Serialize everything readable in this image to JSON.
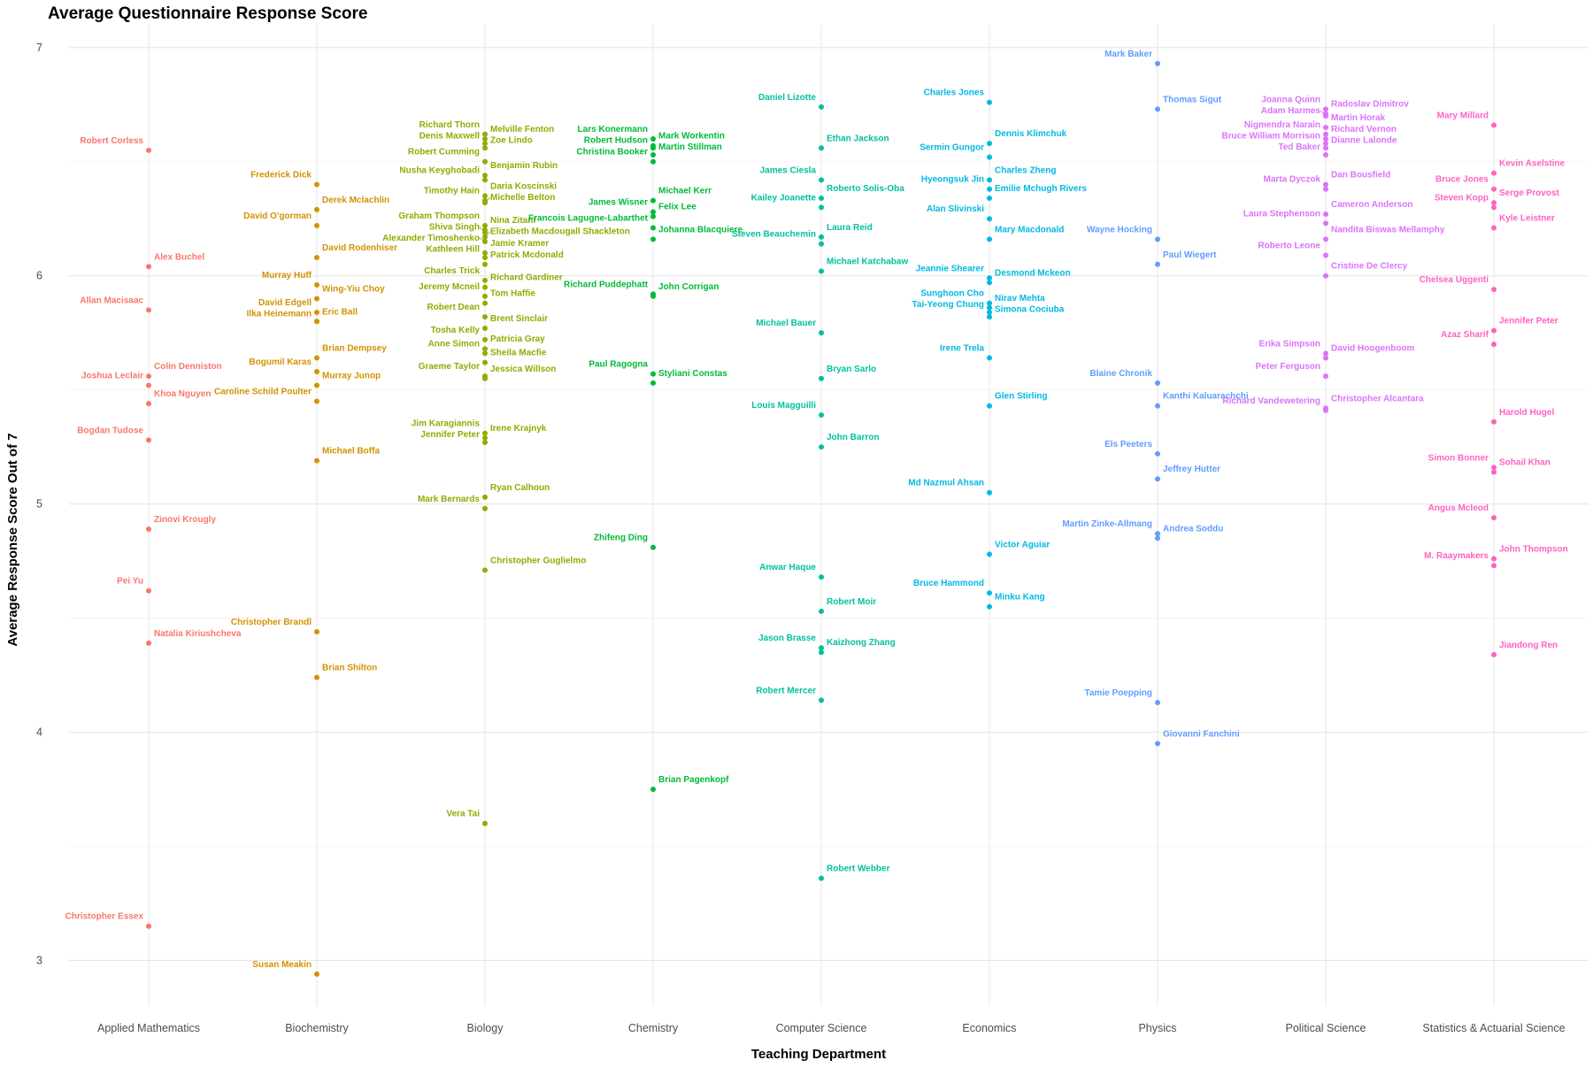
{
  "chart_data": {
    "type": "scatter",
    "title": "Average Questionnaire Response Score",
    "xlabel": "Teaching Department",
    "ylabel": "Average Response Score Out of 7",
    "ylim": [
      2.8,
      7.1
    ],
    "yticks": [
      "3",
      "4",
      "5",
      "6",
      "7"
    ],
    "grid": true,
    "legend": "none",
    "categories": [
      "Applied Mathematics",
      "Biochemistry",
      "Biology",
      "Chemistry",
      "Computer Science",
      "Economics",
      "Physics",
      "Political Science",
      "Statistics & Actuarial Science"
    ],
    "colors": [
      "#F8766D",
      "#D39200",
      "#93AA00",
      "#00BA38",
      "#00C19F",
      "#00B9E3",
      "#619CFF",
      "#DB72FB",
      "#FF61C3"
    ],
    "series": [
      {
        "category": "Applied Mathematics",
        "points": [
          {
            "name": "Robert Corless",
            "y": 6.55
          },
          {
            "name": "Alex Buchel",
            "y": 6.04
          },
          {
            "name": "Allan Macisaac",
            "y": 5.85
          },
          {
            "name": "Colin Denniston",
            "y": 5.56
          },
          {
            "name": "Joshua Leclair",
            "y": 5.52
          },
          {
            "name": "Khoa Nguyen",
            "y": 5.44
          },
          {
            "name": "Bogdan Tudose",
            "y": 5.28
          },
          {
            "name": "Zinovi Krougly",
            "y": 4.89
          },
          {
            "name": "Pei Yu",
            "y": 4.62
          },
          {
            "name": "Natalia Kiriushcheva",
            "y": 4.39
          },
          {
            "name": "Christopher Essex",
            "y": 3.15
          }
        ]
      },
      {
        "category": "Biochemistry",
        "points": [
          {
            "name": "Frederick Dick",
            "y": 6.4
          },
          {
            "name": "Derek Mclachlin",
            "y": 6.29
          },
          {
            "name": "David O'gorman",
            "y": 6.22
          },
          {
            "name": "David Rodenhiser",
            "y": 6.08
          },
          {
            "name": "Murray Huff",
            "y": 5.96
          },
          {
            "name": "Wing-Yiu Choy",
            "y": 5.9
          },
          {
            "name": "David Edgell",
            "y": 5.84
          },
          {
            "name": "Eric Ball",
            "y": 5.8
          },
          {
            "name": "Ilka Heinemann",
            "y": 5.8
          },
          {
            "name": "Brian Dempsey",
            "y": 5.64
          },
          {
            "name": "Bogumil Karas",
            "y": 5.58
          },
          {
            "name": "Murray Junop",
            "y": 5.52
          },
          {
            "name": "Caroline Schild Poulter",
            "y": 5.45
          },
          {
            "name": "Michael Boffa",
            "y": 5.19
          },
          {
            "name": "Christopher Brandl",
            "y": 4.44
          },
          {
            "name": "Brian Shilton",
            "y": 4.24
          },
          {
            "name": "Susan Meakin",
            "y": 2.94
          }
        ]
      },
      {
        "category": "Biology",
        "points": [
          {
            "name": "Richard Thorn",
            "y": 6.62
          },
          {
            "name": "Melville Fenton",
            "y": 6.6
          },
          {
            "name": "Denis Maxwell",
            "y": 6.58
          },
          {
            "name": "Zoe Lindo",
            "y": 6.56
          },
          {
            "name": "Robert Cumming",
            "y": 6.5
          },
          {
            "name": "Benjamin Rubin",
            "y": 6.44
          },
          {
            "name": "Nusha Keyghobadi",
            "y": 6.42
          },
          {
            "name": "Daria Koscinski",
            "y": 6.35
          },
          {
            "name": "Timothy Hain",
            "y": 6.33
          },
          {
            "name": "Michelle Belton",
            "y": 6.32
          },
          {
            "name": "Graham Thompson",
            "y": 6.22
          },
          {
            "name": "Nina Zitani",
            "y": 6.2
          },
          {
            "name": "Shiva Singh",
            "y": 6.19
          },
          {
            "name": "Elizabeth Macdougall Shackleton",
            "y": 6.17
          },
          {
            "name": "Alexander Timoshenko",
            "y": 6.15
          },
          {
            "name": "Jamie Kramer",
            "y": 6.1
          },
          {
            "name": "Kathleen Hill",
            "y": 6.08
          },
          {
            "name": "Patrick Mcdonald",
            "y": 6.05
          },
          {
            "name": "Charles Trick",
            "y": 5.98
          },
          {
            "name": "Richard Gardiner",
            "y": 5.95
          },
          {
            "name": "Jeremy Mcneil",
            "y": 5.91
          },
          {
            "name": "Tom Haffie",
            "y": 5.88
          },
          {
            "name": "Robert Dean",
            "y": 5.82
          },
          {
            "name": "Brent Sinclair",
            "y": 5.77
          },
          {
            "name": "Tosha Kelly",
            "y": 5.72
          },
          {
            "name": "Patricia Gray",
            "y": 5.68
          },
          {
            "name": "Anne Simon",
            "y": 5.66
          },
          {
            "name": "Sheila Macfie",
            "y": 5.62
          },
          {
            "name": "Graeme Taylor",
            "y": 5.56
          },
          {
            "name": "Jessica Willson",
            "y": 5.55
          },
          {
            "name": "Jim Karagiannis",
            "y": 5.31
          },
          {
            "name": "Irene Krajnyk",
            "y": 5.29
          },
          {
            "name": "Jennifer Peter",
            "y": 5.27
          },
          {
            "name": "Ryan Calhoun",
            "y": 5.03
          },
          {
            "name": "Mark Bernards",
            "y": 4.98
          },
          {
            "name": "Christopher Guglielmo",
            "y": 4.71
          },
          {
            "name": "Vera Tai",
            "y": 3.6
          }
        ]
      },
      {
        "category": "Chemistry",
        "points": [
          {
            "name": "Lars Konermann",
            "y": 6.6
          },
          {
            "name": "Mark Workentin",
            "y": 6.57
          },
          {
            "name": "Robert Hudson",
            "y": 6.56
          },
          {
            "name": "Martin Stillman",
            "y": 6.53
          },
          {
            "name": "Christina Booker",
            "y": 6.5
          },
          {
            "name": "Michael Kerr",
            "y": 6.33
          },
          {
            "name": "James Wisner",
            "y": 6.28
          },
          {
            "name": "Felix Lee",
            "y": 6.26
          },
          {
            "name": "Francois Lagugne-Labarthet",
            "y": 6.21
          },
          {
            "name": "Johanna Blacquiere",
            "y": 6.16
          },
          {
            "name": "Richard Puddephatt",
            "y": 5.92
          },
          {
            "name": "John Corrigan",
            "y": 5.91
          },
          {
            "name": "Paul Ragogna",
            "y": 5.57
          },
          {
            "name": "Styliani Constas",
            "y": 5.53
          },
          {
            "name": "Zhifeng Ding",
            "y": 4.81
          },
          {
            "name": "Brian Pagenkopf",
            "y": 3.75
          }
        ]
      },
      {
        "category": "Computer Science",
        "points": [
          {
            "name": "Daniel Lizotte",
            "y": 6.74
          },
          {
            "name": "Ethan Jackson",
            "y": 6.56
          },
          {
            "name": "James Ciesla",
            "y": 6.42
          },
          {
            "name": "Roberto Solis-Oba",
            "y": 6.34
          },
          {
            "name": "Kailey Joanette",
            "y": 6.3
          },
          {
            "name": "Laura Reid",
            "y": 6.17
          },
          {
            "name": "Steven Beauchemin",
            "y": 6.14
          },
          {
            "name": "Michael Katchabaw",
            "y": 6.02
          },
          {
            "name": "Michael Bauer",
            "y": 5.75
          },
          {
            "name": "Bryan Sarlo",
            "y": 5.55
          },
          {
            "name": "Louis Magguilli",
            "y": 5.39
          },
          {
            "name": "John Barron",
            "y": 5.25
          },
          {
            "name": "Anwar Haque",
            "y": 4.68
          },
          {
            "name": "Robert Moir",
            "y": 4.53
          },
          {
            "name": "Jason Brasse",
            "y": 4.37
          },
          {
            "name": "Kaizhong Zhang",
            "y": 4.35
          },
          {
            "name": "Robert Mercer",
            "y": 4.14
          },
          {
            "name": "Robert Webber",
            "y": 3.36
          }
        ]
      },
      {
        "category": "Economics",
        "points": [
          {
            "name": "Charles Jones",
            "y": 6.76
          },
          {
            "name": "Dennis Klimchuk",
            "y": 6.58
          },
          {
            "name": "Sermin Gungor",
            "y": 6.52
          },
          {
            "name": "Charles Zheng",
            "y": 6.42
          },
          {
            "name": "Hyeongsuk Jin",
            "y": 6.38
          },
          {
            "name": "Emilie Mchugh Rivers",
            "y": 6.34
          },
          {
            "name": "Alan Slivinski",
            "y": 6.25
          },
          {
            "name": "Mary Macdonald",
            "y": 6.16
          },
          {
            "name": "Jeannie Shearer",
            "y": 5.99
          },
          {
            "name": "Desmond Mckeon",
            "y": 5.97
          },
          {
            "name": "Sunghoon Cho",
            "y": 5.88
          },
          {
            "name": "Nirav Mehta",
            "y": 5.86
          },
          {
            "name": "Tai-Yeong Chung",
            "y": 5.84
          },
          {
            "name": "Simona Cociuba",
            "y": 5.82
          },
          {
            "name": "Irene Trela",
            "y": 5.64
          },
          {
            "name": "Glen Stirling",
            "y": 5.43
          },
          {
            "name": "Md Nazmul Ahsan",
            "y": 5.05
          },
          {
            "name": "Victor Aguiar",
            "y": 4.78
          },
          {
            "name": "Bruce Hammond",
            "y": 4.61
          },
          {
            "name": "Minku Kang",
            "y": 4.55
          }
        ]
      },
      {
        "category": "Physics",
        "points": [
          {
            "name": "Mark Baker",
            "y": 6.93
          },
          {
            "name": "Thomas Sigut",
            "y": 6.73
          },
          {
            "name": "Wayne Hocking",
            "y": 6.16
          },
          {
            "name": "Paul Wiegert",
            "y": 6.05
          },
          {
            "name": "Blaine Chronik",
            "y": 5.53
          },
          {
            "name": "Kanthi Kaluarachchi",
            "y": 5.43
          },
          {
            "name": "Els Peeters",
            "y": 5.22
          },
          {
            "name": "Jeffrey Hutter",
            "y": 5.11
          },
          {
            "name": "Martin Zinke-Allmang",
            "y": 4.87
          },
          {
            "name": "Andrea Soddu",
            "y": 4.85
          },
          {
            "name": "Tamie Poepping",
            "y": 4.13
          },
          {
            "name": "Giovanni Fanchini",
            "y": 3.95
          }
        ]
      },
      {
        "category": "Political Science",
        "points": [
          {
            "name": "Joanna Quinn",
            "y": 6.73
          },
          {
            "name": "Radoslav Dimitrov",
            "y": 6.71
          },
          {
            "name": "Adam Harmes",
            "y": 6.7
          },
          {
            "name": "Martin Horak",
            "y": 6.65
          },
          {
            "name": "Nigmendra Narain",
            "y": 6.62
          },
          {
            "name": "Richard Vernon",
            "y": 6.6
          },
          {
            "name": "Bruce William Morrison",
            "y": 6.58
          },
          {
            "name": "Dianne Lalonde",
            "y": 6.56
          },
          {
            "name": "Ted Baker",
            "y": 6.53
          },
          {
            "name": "Dan Bousfield",
            "y": 6.4
          },
          {
            "name": "Marta Dyczok",
            "y": 6.38
          },
          {
            "name": "Cameron Anderson",
            "y": 6.27
          },
          {
            "name": "Laura Stephenson",
            "y": 6.23
          },
          {
            "name": "Nandita Biswas Mellamphy",
            "y": 6.16
          },
          {
            "name": "Roberto Leone",
            "y": 6.09
          },
          {
            "name": "Cristine De Clercy",
            "y": 6.0
          },
          {
            "name": "Erika Simpson",
            "y": 5.66
          },
          {
            "name": "David Hoogenboom",
            "y": 5.64
          },
          {
            "name": "Peter Ferguson",
            "y": 5.56
          },
          {
            "name": "Christopher Alcantara",
            "y": 5.42
          },
          {
            "name": "Richard Vandewetering",
            "y": 5.41
          }
        ]
      },
      {
        "category": "Statistics & Actuarial Science",
        "points": [
          {
            "name": "Mary Millard",
            "y": 6.66
          },
          {
            "name": "Kevin Aselstine",
            "y": 6.45
          },
          {
            "name": "Bruce Jones",
            "y": 6.38
          },
          {
            "name": "Serge Provost",
            "y": 6.32
          },
          {
            "name": "Steven Kopp",
            "y": 6.3
          },
          {
            "name": "Kyle Leistner",
            "y": 6.21
          },
          {
            "name": "Chelsea Uggenti",
            "y": 5.94
          },
          {
            "name": "Jennifer Peter",
            "y": 5.76
          },
          {
            "name": "Azaz Sharif",
            "y": 5.7
          },
          {
            "name": "Harold Hugel",
            "y": 5.36
          },
          {
            "name": "Simon Bonner",
            "y": 5.16
          },
          {
            "name": "Sohail Khan",
            "y": 5.14
          },
          {
            "name": "Angus Mcleod",
            "y": 4.94
          },
          {
            "name": "John Thompson",
            "y": 4.76
          },
          {
            "name": "M. Raaymakers",
            "y": 4.73
          },
          {
            "name": "Jiandong Ren",
            "y": 4.34
          }
        ]
      }
    ]
  }
}
